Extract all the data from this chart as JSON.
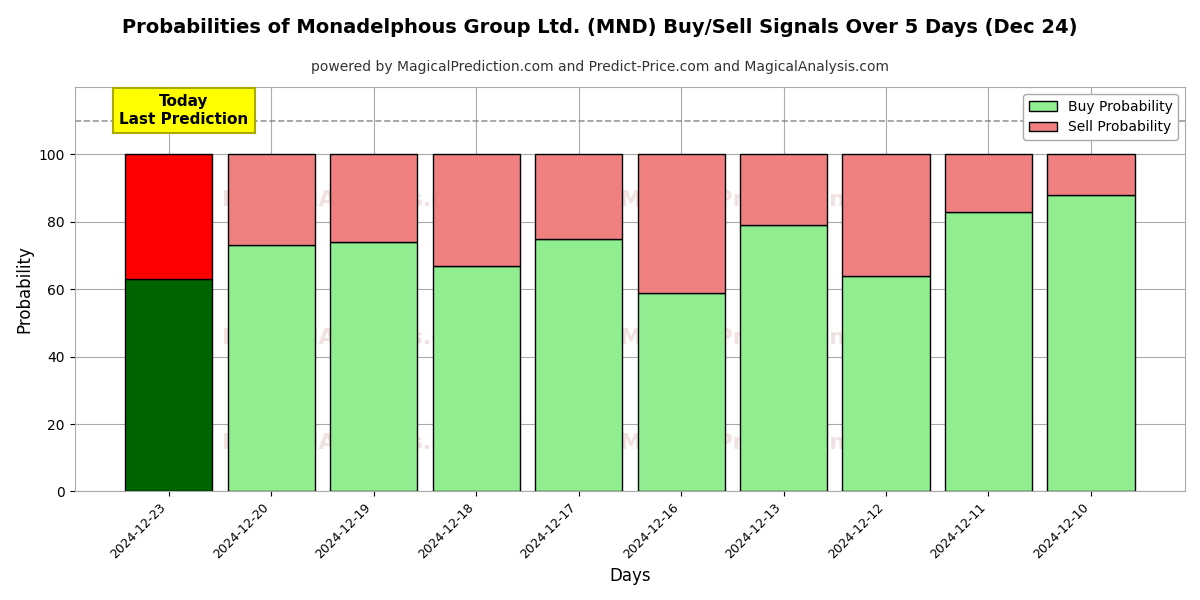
{
  "title": "Probabilities of Monadelphous Group Ltd. (MND) Buy/Sell Signals Over 5 Days (Dec 24)",
  "subtitle": "powered by MagicalPrediction.com and Predict-Price.com and MagicalAnalysis.com",
  "xlabel": "Days",
  "ylabel": "Probability",
  "categories": [
    "2024-12-23",
    "2024-12-20",
    "2024-12-19",
    "2024-12-18",
    "2024-12-17",
    "2024-12-16",
    "2024-12-13",
    "2024-12-12",
    "2024-12-11",
    "2024-12-10"
  ],
  "buy_values": [
    63,
    73,
    74,
    67,
    75,
    59,
    79,
    64,
    83,
    88
  ],
  "sell_values": [
    37,
    27,
    26,
    33,
    25,
    41,
    21,
    36,
    17,
    12
  ],
  "buy_color_today": "#006400",
  "sell_color_today": "#FF0000",
  "buy_color_normal": "#90EE90",
  "sell_color_normal": "#F08080",
  "bar_edge_color": "#000000",
  "bar_edge_width": 1.0,
  "today_annotation_text": "Today\nLast Prediction",
  "today_annotation_bg": "#FFFF00",
  "legend_buy_label": "Buy Probability",
  "legend_sell_label": "Sell Probability",
  "ylim": [
    0,
    120
  ],
  "yticks": [
    0,
    20,
    40,
    60,
    80,
    100
  ],
  "dashed_line_y": 110,
  "grid_color": "#AAAAAA",
  "background_color": "#FFFFFF",
  "title_fontsize": 14,
  "subtitle_fontsize": 10,
  "axis_label_fontsize": 12,
  "tick_fontsize": 9
}
